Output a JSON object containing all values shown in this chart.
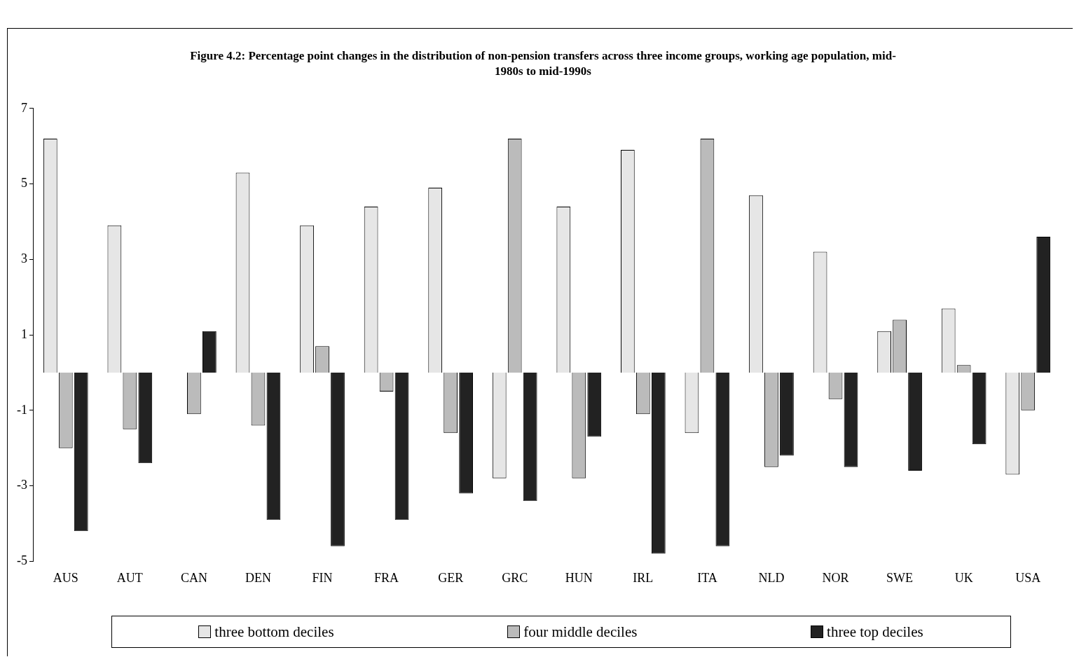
{
  "chart_data": {
    "type": "bar",
    "title": "Figure 4.2: Percentage point changes in the distribution of non-pension transfers across three income groups, working age population, mid-1980s to mid-1990s",
    "categories": [
      "AUS",
      "AUT",
      "CAN",
      "DEN",
      "FIN",
      "FRA",
      "GER",
      "GRC",
      "HUN",
      "IRL",
      "ITA",
      "NLD",
      "NOR",
      "SWE",
      "UK",
      "USA"
    ],
    "series": [
      {
        "name": "three bottom deciles",
        "color": "#e6e6e6",
        "values": [
          6.2,
          3.9,
          0,
          5.3,
          3.9,
          4.4,
          4.9,
          -2.8,
          4.4,
          5.9,
          -1.6,
          4.7,
          3.2,
          1.1,
          1.7,
          -2.7
        ]
      },
      {
        "name": "four middle deciles",
        "color": "#bbbbbb",
        "values": [
          -2.0,
          -1.5,
          -1.1,
          -1.4,
          0.7,
          -0.5,
          -1.6,
          6.2,
          -2.8,
          -1.1,
          6.2,
          -2.5,
          -0.7,
          1.4,
          0.2,
          -1.0
        ]
      },
      {
        "name": "three top deciles",
        "color": "#222222",
        "values": [
          -4.2,
          -2.4,
          1.1,
          -3.9,
          -4.6,
          -3.9,
          -3.2,
          -3.4,
          -1.7,
          -4.8,
          -4.6,
          -2.2,
          -2.5,
          -2.6,
          -1.9,
          3.6
        ]
      }
    ],
    "ylim": [
      -5,
      7
    ],
    "yticks": [
      -5,
      -3,
      -1,
      1,
      3,
      5,
      7
    ],
    "legend": "bottom"
  }
}
